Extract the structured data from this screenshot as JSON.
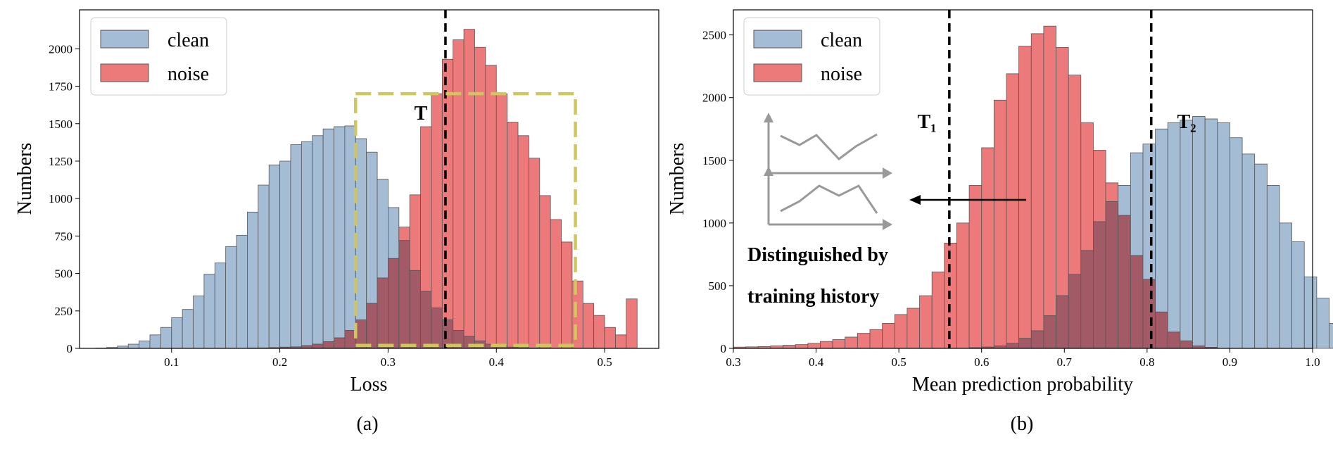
{
  "colors": {
    "clean_fill": "#a4bcd4",
    "noise_fill": "#ec7a7a",
    "overlap_fill": "#a35a67",
    "bar_edge": "#555555",
    "threshold_line": "#000000",
    "region_box": "#cfc75a",
    "history_icon": "#999999"
  },
  "chart_data": [
    {
      "id": "a",
      "type": "bar",
      "caption": "(a)",
      "xlabel": "Loss",
      "ylabel": "Numbers",
      "xlim": [
        0.015,
        0.55
      ],
      "ylim": [
        0,
        2260
      ],
      "xticks": [
        "0.1",
        "0.2",
        "0.3",
        "0.4",
        "0.5"
      ],
      "xtick_values": [
        0.1,
        0.2,
        0.3,
        0.4,
        0.5
      ],
      "yticks": [
        "0",
        "250",
        "500",
        "750",
        "1000",
        "1250",
        "1500",
        "1750",
        "2000"
      ],
      "ytick_values": [
        0,
        250,
        500,
        750,
        1000,
        1250,
        1500,
        1750,
        2000
      ],
      "legend_position": "upper-left",
      "bin_start": 0.03,
      "bin_width": 0.01,
      "series": [
        {
          "name": "clean",
          "values": [
            2,
            6,
            15,
            28,
            50,
            90,
            140,
            205,
            260,
            350,
            495,
            570,
            680,
            755,
            910,
            1090,
            1225,
            1250,
            1360,
            1380,
            1420,
            1465,
            1480,
            1485,
            1400,
            1310,
            1130,
            940,
            720,
            520,
            380,
            270,
            190,
            120,
            80,
            50,
            28,
            15,
            8,
            4,
            2,
            1,
            0,
            0,
            0,
            0,
            0,
            0,
            0,
            0
          ]
        },
        {
          "name": "noise",
          "values": [
            0,
            0,
            0,
            0,
            0,
            0,
            0,
            0,
            0,
            0,
            0,
            0,
            0,
            0,
            2,
            3,
            5,
            8,
            10,
            18,
            28,
            45,
            70,
            120,
            190,
            300,
            470,
            600,
            810,
            1025,
            1480,
            1700,
            1930,
            2060,
            2130,
            2010,
            1890,
            1700,
            1510,
            1420,
            1270,
            1020,
            860,
            710,
            450,
            300,
            220,
            140,
            90,
            330
          ]
        }
      ],
      "thresholds": [
        {
          "label": "T",
          "x": 0.353
        }
      ],
      "region": {
        "x0": 0.27,
        "x1": 0.473,
        "y0": 20,
        "y1": 1700
      }
    },
    {
      "id": "b",
      "type": "bar",
      "caption": "(b)",
      "xlabel": "Mean prediction probability",
      "ylabel": "Numbers",
      "xlim": [
        0.3,
        1.0
      ],
      "ylim": [
        0,
        2700
      ],
      "xticks": [
        "0.3",
        "0.4",
        "0.5",
        "0.6",
        "0.7",
        "0.8",
        "0.9",
        "1.0"
      ],
      "xtick_values": [
        0.3,
        0.4,
        0.5,
        0.6,
        0.7,
        0.8,
        0.9,
        1.0
      ],
      "yticks": [
        "0",
        "500",
        "1000",
        "1500",
        "2000",
        "2500"
      ],
      "ytick_values": [
        0,
        500,
        1000,
        1500,
        2000,
        2500
      ],
      "legend_position": "upper-left",
      "bin_start": 0.3,
      "bin_width": 0.015,
      "series": [
        {
          "name": "clean",
          "values": [
            0,
            0,
            0,
            0,
            0,
            0,
            0,
            0,
            0,
            0,
            0,
            0,
            0,
            0,
            0,
            0,
            0,
            0,
            0,
            5,
            10,
            20,
            40,
            80,
            140,
            260,
            420,
            590,
            780,
            1010,
            1170,
            1300,
            1560,
            1630,
            1750,
            1800,
            1820,
            1850,
            1830,
            1800,
            1680,
            1550,
            1470,
            1300,
            1000,
            850,
            570,
            400,
            200,
            120,
            40,
            10,
            2
          ]
        },
        {
          "name": "noise",
          "values": [
            10,
            12,
            15,
            20,
            25,
            30,
            40,
            55,
            70,
            90,
            120,
            150,
            200,
            270,
            320,
            420,
            610,
            840,
            1000,
            1300,
            1600,
            1980,
            2190,
            2410,
            2510,
            2570,
            2400,
            2180,
            1800,
            1580,
            1320,
            1060,
            740,
            550,
            290,
            130,
            60,
            20,
            8,
            0,
            0,
            0,
            0,
            0,
            0,
            0,
            0,
            0,
            0,
            0,
            0,
            0,
            0
          ]
        }
      ],
      "thresholds": [
        {
          "label": "T₁",
          "x": 0.561
        },
        {
          "label": "T₂",
          "x": 0.805
        }
      ],
      "annotation": {
        "text_line1": "Distinguished by",
        "text_line2": "training history"
      }
    }
  ]
}
